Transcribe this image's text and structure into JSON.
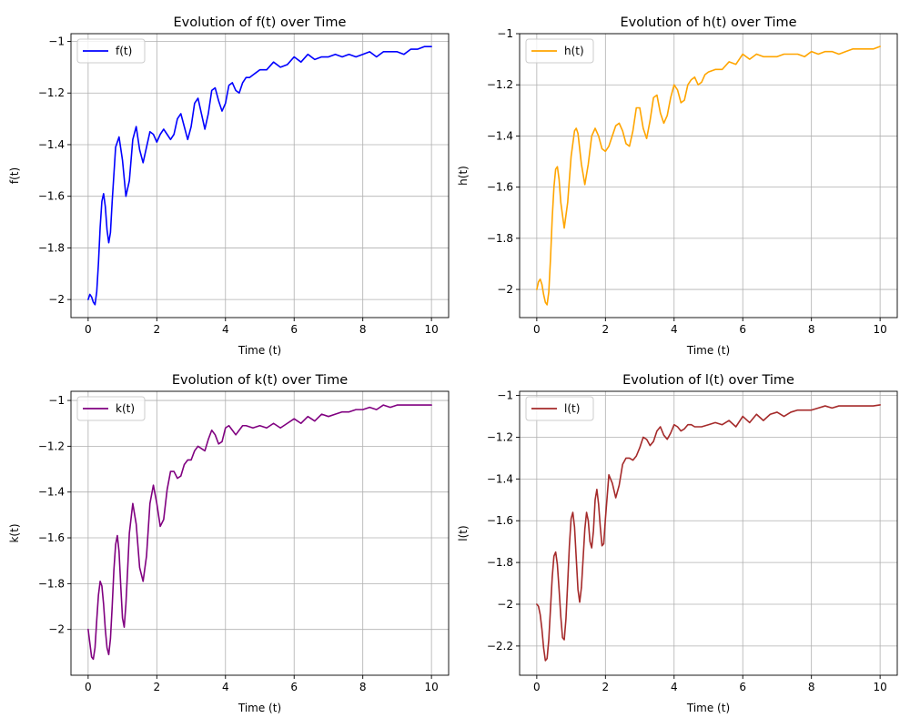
{
  "chart_data": [
    {
      "type": "line",
      "title": "Evolution of f(t) over Time",
      "xlabel": "Time (t)",
      "ylabel": "f(t)",
      "xlim": [
        -0.5,
        10.5
      ],
      "ylim": [
        -2.07,
        -0.97
      ],
      "xticks": [
        0,
        2,
        4,
        6,
        8,
        10
      ],
      "yticks": [
        -2.0,
        -1.8,
        -1.6,
        -1.4,
        -1.2,
        -1.0
      ],
      "grid": true,
      "legend": "upper-left",
      "series": [
        {
          "name": "f(t)",
          "color": "#0000ff",
          "x": [
            0,
            0.05,
            0.1,
            0.15,
            0.2,
            0.25,
            0.3,
            0.35,
            0.4,
            0.45,
            0.5,
            0.55,
            0.6,
            0.65,
            0.7,
            0.8,
            0.9,
            1.0,
            1.1,
            1.2,
            1.3,
            1.4,
            1.5,
            1.6,
            1.7,
            1.8,
            1.9,
            2.0,
            2.1,
            2.2,
            2.3,
            2.4,
            2.5,
            2.6,
            2.7,
            2.8,
            2.9,
            3.0,
            3.1,
            3.2,
            3.3,
            3.4,
            3.5,
            3.6,
            3.7,
            3.8,
            3.9,
            4.0,
            4.1,
            4.2,
            4.3,
            4.4,
            4.5,
            4.6,
            4.7,
            4.8,
            4.9,
            5.0,
            5.2,
            5.4,
            5.6,
            5.8,
            6.0,
            6.2,
            6.4,
            6.6,
            6.8,
            7.0,
            7.2,
            7.4,
            7.6,
            7.8,
            8.0,
            8.2,
            8.4,
            8.6,
            8.8,
            9.0,
            9.2,
            9.4,
            9.6,
            9.8,
            10.0
          ],
          "y": [
            -2.0,
            -1.98,
            -1.99,
            -2.01,
            -2.02,
            -1.97,
            -1.86,
            -1.72,
            -1.62,
            -1.59,
            -1.64,
            -1.73,
            -1.78,
            -1.74,
            -1.62,
            -1.41,
            -1.37,
            -1.46,
            -1.6,
            -1.54,
            -1.38,
            -1.33,
            -1.42,
            -1.47,
            -1.41,
            -1.35,
            -1.36,
            -1.39,
            -1.36,
            -1.34,
            -1.36,
            -1.38,
            -1.36,
            -1.3,
            -1.28,
            -1.33,
            -1.38,
            -1.33,
            -1.24,
            -1.22,
            -1.28,
            -1.34,
            -1.28,
            -1.19,
            -1.18,
            -1.23,
            -1.27,
            -1.24,
            -1.17,
            -1.16,
            -1.19,
            -1.2,
            -1.16,
            -1.14,
            -1.14,
            -1.13,
            -1.12,
            -1.11,
            -1.11,
            -1.08,
            -1.1,
            -1.09,
            -1.06,
            -1.08,
            -1.05,
            -1.07,
            -1.06,
            -1.06,
            -1.05,
            -1.06,
            -1.05,
            -1.06,
            -1.05,
            -1.04,
            -1.06,
            -1.04,
            -1.04,
            -1.04,
            -1.05,
            -1.03,
            -1.03,
            -1.02,
            -1.02
          ]
        }
      ]
    },
    {
      "type": "line",
      "title": "Evolution of h(t) over Time",
      "xlabel": "Time (t)",
      "ylabel": "h(t)",
      "xlim": [
        -0.5,
        10.5
      ],
      "ylim": [
        -2.11,
        -1.0
      ],
      "xticks": [
        0,
        2,
        4,
        6,
        8,
        10
      ],
      "yticks": [
        -2.0,
        -1.8,
        -1.6,
        -1.4,
        -1.2,
        -1.0
      ],
      "grid": true,
      "legend": "upper-left",
      "series": [
        {
          "name": "h(t)",
          "color": "#ffa500",
          "x": [
            0,
            0.05,
            0.1,
            0.15,
            0.2,
            0.25,
            0.3,
            0.35,
            0.4,
            0.45,
            0.5,
            0.55,
            0.6,
            0.65,
            0.7,
            0.8,
            0.9,
            1.0,
            1.1,
            1.15,
            1.2,
            1.3,
            1.4,
            1.5,
            1.6,
            1.7,
            1.8,
            1.9,
            2.0,
            2.1,
            2.2,
            2.3,
            2.4,
            2.5,
            2.6,
            2.7,
            2.8,
            2.9,
            3.0,
            3.1,
            3.2,
            3.3,
            3.4,
            3.5,
            3.6,
            3.7,
            3.8,
            3.9,
            4.0,
            4.1,
            4.2,
            4.3,
            4.4,
            4.5,
            4.6,
            4.7,
            4.8,
            4.9,
            5.0,
            5.2,
            5.4,
            5.6,
            5.8,
            6.0,
            6.2,
            6.4,
            6.6,
            6.8,
            7.0,
            7.2,
            7.4,
            7.6,
            7.8,
            8.0,
            8.2,
            8.4,
            8.6,
            8.8,
            9.0,
            9.2,
            9.4,
            9.6,
            9.8,
            10.0
          ],
          "y": [
            -2.0,
            -1.97,
            -1.96,
            -1.98,
            -2.02,
            -2.05,
            -2.06,
            -2.01,
            -1.88,
            -1.72,
            -1.6,
            -1.53,
            -1.52,
            -1.57,
            -1.66,
            -1.76,
            -1.66,
            -1.48,
            -1.38,
            -1.37,
            -1.39,
            -1.51,
            -1.59,
            -1.51,
            -1.4,
            -1.37,
            -1.4,
            -1.45,
            -1.46,
            -1.44,
            -1.4,
            -1.36,
            -1.35,
            -1.38,
            -1.43,
            -1.44,
            -1.38,
            -1.29,
            -1.29,
            -1.37,
            -1.41,
            -1.34,
            -1.25,
            -1.24,
            -1.31,
            -1.35,
            -1.32,
            -1.25,
            -1.2,
            -1.22,
            -1.27,
            -1.26,
            -1.2,
            -1.18,
            -1.17,
            -1.2,
            -1.19,
            -1.16,
            -1.15,
            -1.14,
            -1.14,
            -1.11,
            -1.12,
            -1.08,
            -1.1,
            -1.08,
            -1.09,
            -1.09,
            -1.09,
            -1.08,
            -1.08,
            -1.08,
            -1.09,
            -1.07,
            -1.08,
            -1.07,
            -1.07,
            -1.08,
            -1.07,
            -1.06,
            -1.06,
            -1.06,
            -1.06,
            -1.05
          ]
        }
      ]
    },
    {
      "type": "line",
      "title": "Evolution of k(t) over Time",
      "xlabel": "Time (t)",
      "ylabel": "k(t)",
      "xlim": [
        -0.5,
        10.5
      ],
      "ylim": [
        -2.2,
        -0.96
      ],
      "xticks": [
        0,
        2,
        4,
        6,
        8,
        10
      ],
      "yticks": [
        -2.0,
        -1.8,
        -1.6,
        -1.4,
        -1.2,
        -1.0
      ],
      "grid": true,
      "legend": "upper-left",
      "series": [
        {
          "name": "k(t)",
          "color": "#800080",
          "x": [
            0,
            0.05,
            0.1,
            0.15,
            0.2,
            0.25,
            0.3,
            0.35,
            0.4,
            0.45,
            0.5,
            0.55,
            0.6,
            0.65,
            0.7,
            0.75,
            0.8,
            0.85,
            0.9,
            0.95,
            1.0,
            1.05,
            1.1,
            1.15,
            1.2,
            1.3,
            1.4,
            1.5,
            1.6,
            1.7,
            1.8,
            1.9,
            2.0,
            2.1,
            2.2,
            2.3,
            2.4,
            2.5,
            2.6,
            2.7,
            2.8,
            2.9,
            3.0,
            3.1,
            3.2,
            3.3,
            3.4,
            3.5,
            3.6,
            3.7,
            3.8,
            3.9,
            4.0,
            4.1,
            4.2,
            4.3,
            4.4,
            4.5,
            4.6,
            4.8,
            5.0,
            5.2,
            5.4,
            5.6,
            5.8,
            6.0,
            6.2,
            6.4,
            6.6,
            6.8,
            7.0,
            7.2,
            7.4,
            7.6,
            7.8,
            8.0,
            8.2,
            8.4,
            8.6,
            8.8,
            9.0,
            9.2,
            9.4,
            9.6,
            9.8,
            10.0
          ],
          "y": [
            -2.0,
            -2.06,
            -2.12,
            -2.13,
            -2.08,
            -1.96,
            -1.85,
            -1.79,
            -1.81,
            -1.89,
            -2.0,
            -2.08,
            -2.11,
            -2.04,
            -1.9,
            -1.74,
            -1.63,
            -1.59,
            -1.66,
            -1.81,
            -1.95,
            -1.99,
            -1.89,
            -1.74,
            -1.58,
            -1.45,
            -1.54,
            -1.73,
            -1.79,
            -1.68,
            -1.45,
            -1.37,
            -1.45,
            -1.55,
            -1.52,
            -1.39,
            -1.31,
            -1.31,
            -1.34,
            -1.33,
            -1.28,
            -1.26,
            -1.26,
            -1.22,
            -1.2,
            -1.21,
            -1.22,
            -1.17,
            -1.13,
            -1.15,
            -1.19,
            -1.18,
            -1.12,
            -1.11,
            -1.13,
            -1.15,
            -1.13,
            -1.11,
            -1.11,
            -1.12,
            -1.11,
            -1.12,
            -1.1,
            -1.12,
            -1.1,
            -1.08,
            -1.1,
            -1.07,
            -1.09,
            -1.06,
            -1.07,
            -1.06,
            -1.05,
            -1.05,
            -1.04,
            -1.04,
            -1.03,
            -1.04,
            -1.02,
            -1.03,
            -1.02,
            -1.02,
            -1.02,
            -1.02,
            -1.02,
            -1.02
          ]
        }
      ]
    },
    {
      "type": "line",
      "title": "Evolution of l(t) over Time",
      "xlabel": "Time (t)",
      "ylabel": "l(t)",
      "xlim": [
        -0.5,
        10.5
      ],
      "ylim": [
        -2.34,
        -0.98
      ],
      "xticks": [
        0,
        2,
        4,
        6,
        8,
        10
      ],
      "yticks": [
        -2.2,
        -2.0,
        -1.8,
        -1.6,
        -1.4,
        -1.2,
        -1.0
      ],
      "grid": true,
      "legend": "upper-left",
      "series": [
        {
          "name": "l(t)",
          "color": "#a52a2a",
          "x": [
            0,
            0.05,
            0.1,
            0.15,
            0.2,
            0.25,
            0.3,
            0.35,
            0.4,
            0.45,
            0.5,
            0.55,
            0.6,
            0.65,
            0.7,
            0.75,
            0.8,
            0.85,
            0.9,
            0.95,
            1.0,
            1.05,
            1.1,
            1.15,
            1.2,
            1.25,
            1.3,
            1.35,
            1.4,
            1.45,
            1.5,
            1.55,
            1.6,
            1.65,
            1.7,
            1.75,
            1.8,
            1.85,
            1.9,
            1.95,
            2.0,
            2.1,
            2.2,
            2.3,
            2.4,
            2.5,
            2.6,
            2.7,
            2.8,
            2.9,
            3.0,
            3.1,
            3.2,
            3.3,
            3.4,
            3.5,
            3.6,
            3.7,
            3.8,
            3.9,
            4.0,
            4.1,
            4.2,
            4.3,
            4.4,
            4.5,
            4.6,
            4.8,
            5.0,
            5.2,
            5.4,
            5.6,
            5.8,
            6.0,
            6.2,
            6.4,
            6.6,
            6.8,
            7.0,
            7.2,
            7.4,
            7.6,
            7.8,
            8.0,
            8.2,
            8.4,
            8.6,
            8.8,
            9.0,
            9.2,
            9.4,
            9.6,
            9.8,
            10.0
          ],
          "y": [
            -2.0,
            -2.01,
            -2.05,
            -2.12,
            -2.21,
            -2.27,
            -2.26,
            -2.17,
            -2.02,
            -1.87,
            -1.77,
            -1.75,
            -1.81,
            -1.93,
            -2.06,
            -2.16,
            -2.17,
            -2.07,
            -1.9,
            -1.72,
            -1.59,
            -1.56,
            -1.63,
            -1.78,
            -1.93,
            -1.99,
            -1.92,
            -1.78,
            -1.64,
            -1.56,
            -1.6,
            -1.7,
            -1.73,
            -1.65,
            -1.5,
            -1.45,
            -1.52,
            -1.63,
            -1.72,
            -1.71,
            -1.59,
            -1.38,
            -1.42,
            -1.49,
            -1.43,
            -1.33,
            -1.3,
            -1.3,
            -1.31,
            -1.29,
            -1.25,
            -1.2,
            -1.21,
            -1.24,
            -1.22,
            -1.17,
            -1.15,
            -1.19,
            -1.21,
            -1.18,
            -1.14,
            -1.15,
            -1.17,
            -1.16,
            -1.14,
            -1.14,
            -1.15,
            -1.15,
            -1.14,
            -1.13,
            -1.14,
            -1.12,
            -1.15,
            -1.1,
            -1.13,
            -1.09,
            -1.12,
            -1.09,
            -1.08,
            -1.1,
            -1.08,
            -1.07,
            -1.07,
            -1.07,
            -1.06,
            -1.05,
            -1.06,
            -1.05,
            -1.05,
            -1.05,
            -1.05,
            -1.05,
            -1.05,
            -1.045
          ]
        }
      ]
    }
  ]
}
